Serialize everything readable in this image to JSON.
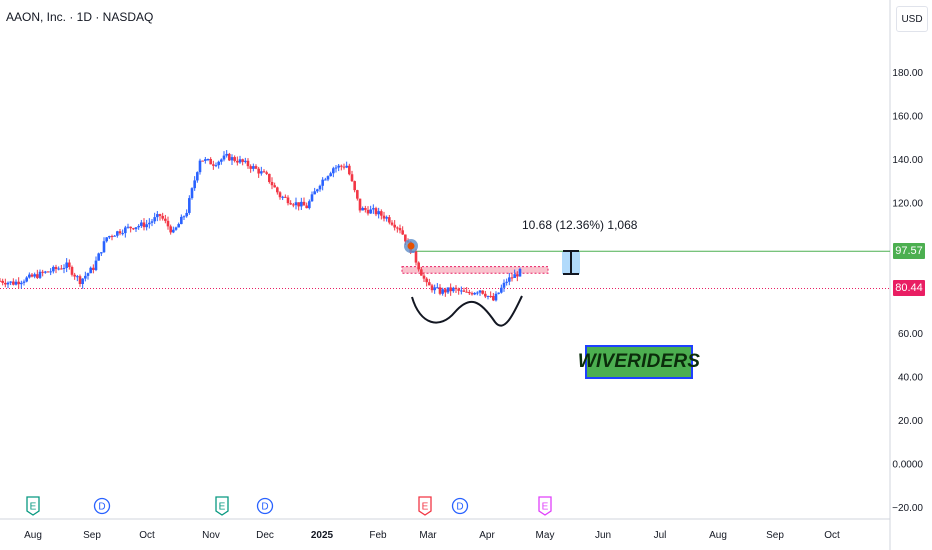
{
  "header": {
    "title": "AAON, Inc. · 1D · NASDAQ"
  },
  "price_scale": {
    "currency": "USD"
  },
  "measure": {
    "label": "10.68 (12.36%) 1,068"
  },
  "watermark": {
    "text": "WIVERIDERS"
  },
  "badges": {
    "green": "97.57",
    "red": "80.44"
  },
  "colors": {
    "up": "#2962ff",
    "down": "#f23645",
    "green_line": "#4caf50",
    "red_line": "#e91e63",
    "zone": "#f7a8b8"
  },
  "events": [
    {
      "letter": "E",
      "month": "Aug",
      "color": "#089981"
    },
    {
      "letter": "D",
      "month": "Sep",
      "color": "#2962ff"
    },
    {
      "letter": "E",
      "month": "Nov",
      "color": "#089981"
    },
    {
      "letter": "D",
      "month": "Dec",
      "color": "#2962ff"
    },
    {
      "letter": "E",
      "month": "Mar",
      "color": "#f23645"
    },
    {
      "letter": "D",
      "month": "Mar",
      "color": "#2962ff"
    },
    {
      "letter": "E",
      "month": "May",
      "color": "#e040fb"
    }
  ],
  "chart_data": {
    "type": "candlestick",
    "title": "AAON, Inc. · 1D · NASDAQ",
    "x_tick_labels": [
      "Aug",
      "Sep",
      "Oct",
      "Nov",
      "Dec",
      "2025",
      "Feb",
      "Mar",
      "Apr",
      "May",
      "Jun",
      "Jul",
      "Aug",
      "Sep",
      "Oct"
    ],
    "y_tick_labels": [
      "180.00",
      "160.00",
      "140.00",
      "120.00",
      "100.00",
      "80.00",
      "60.00",
      "40.00",
      "20.00",
      "0.0000",
      "−20.00"
    ],
    "y_ticks": [
      180,
      160,
      140,
      120,
      100,
      80,
      60,
      40,
      20,
      0,
      -20
    ],
    "ylim": [
      -22,
      192
    ],
    "horizontal_levels": [
      {
        "value": 97.57,
        "label": "97.57",
        "style": "solid",
        "color": "#4caf50"
      },
      {
        "value": 80.44,
        "label": "80.44",
        "style": "dotted",
        "color": "#e91e63"
      }
    ],
    "resistance_zone": {
      "from": 87.5,
      "to": 90.5
    },
    "close_series": {
      "dates": [
        "2024-07-26",
        "2024-08-01",
        "2024-08-08",
        "2024-08-15",
        "2024-08-22",
        "2024-08-29",
        "2024-09-05",
        "2024-09-12",
        "2024-09-19",
        "2024-09-26",
        "2024-10-03",
        "2024-10-10",
        "2024-10-17",
        "2024-10-24",
        "2024-10-31",
        "2024-11-07",
        "2024-11-14",
        "2024-11-21",
        "2024-11-28",
        "2024-12-05",
        "2024-12-12",
        "2024-12-19",
        "2024-12-26",
        "2025-01-02",
        "2025-01-09",
        "2025-01-16",
        "2025-01-23",
        "2025-01-30",
        "2025-02-06",
        "2025-02-13",
        "2025-02-20",
        "2025-02-27",
        "2025-03-06",
        "2025-03-13",
        "2025-03-20",
        "2025-03-27",
        "2025-04-03",
        "2025-04-10",
        "2025-04-17",
        "2025-04-24"
      ],
      "values": [
        84,
        83,
        85,
        87,
        89,
        91,
        84,
        90,
        104,
        107,
        109,
        110,
        114,
        106,
        116,
        140,
        138,
        141,
        139,
        136,
        132,
        123,
        120,
        118,
        129,
        136,
        137,
        117,
        116,
        113,
        108,
        96,
        82,
        79,
        80,
        78,
        80,
        75,
        84,
        88
      ]
    }
  }
}
